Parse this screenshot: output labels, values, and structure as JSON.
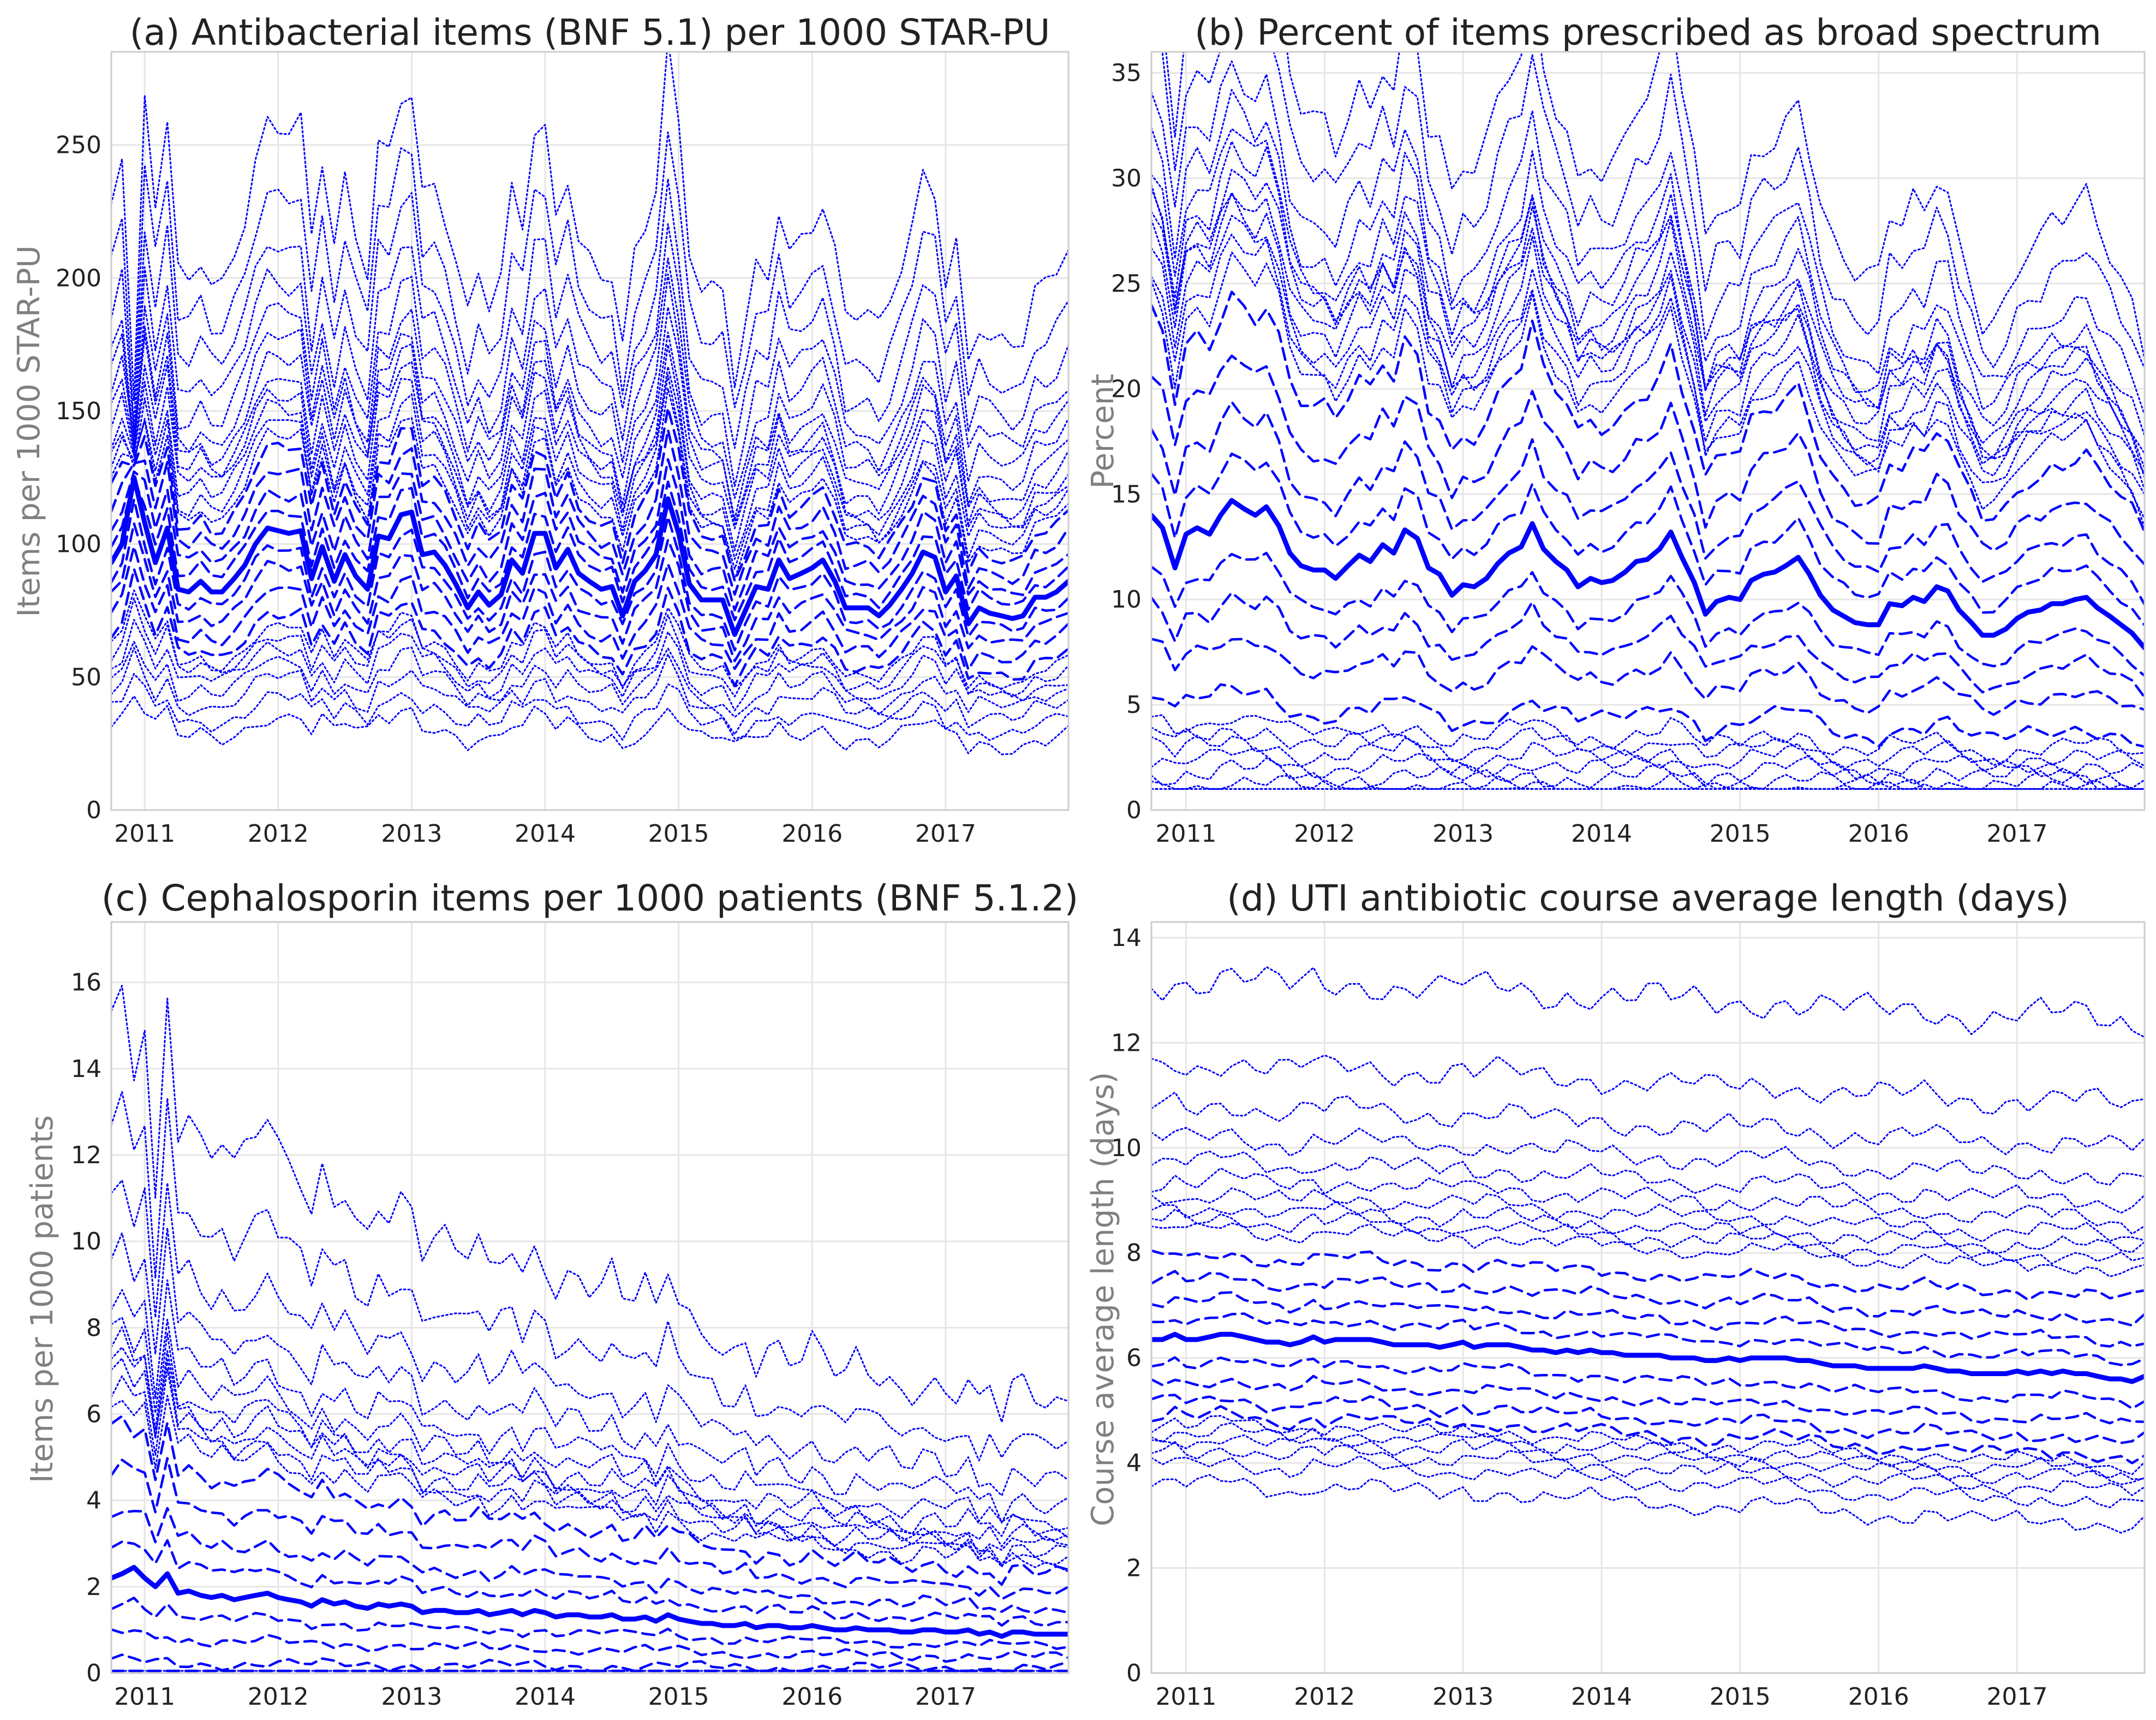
{
  "colors": {
    "series": "#0000ff",
    "grid": "#e6e6e6",
    "frame": "#cccccc"
  },
  "chart_data": [
    {
      "type": "line",
      "title": "(a) Antibacterial items (BNF 5.1) per 1000 STAR-PU",
      "xlabel": "",
      "ylabel": "Items per 1000 STAR-PU",
      "xlim": [
        2010.75,
        2017.92
      ],
      "ylim": [
        0,
        285
      ],
      "xticks": [
        {
          "v": 2011,
          "label": "2011"
        },
        {
          "v": 2012,
          "label": "2012"
        },
        {
          "v": 2013,
          "label": "2013"
        },
        {
          "v": 2014,
          "label": "2014"
        },
        {
          "v": 2015,
          "label": "2015"
        },
        {
          "v": 2016,
          "label": "2016"
        },
        {
          "v": 2017,
          "label": "2017"
        }
      ],
      "yticks": [
        {
          "v": 0,
          "label": "0"
        },
        {
          "v": 50,
          "label": "50"
        },
        {
          "v": 100,
          "label": "100"
        },
        {
          "v": 150,
          "label": "150"
        },
        {
          "v": 200,
          "label": "200"
        },
        {
          "v": 250,
          "label": "250"
        }
      ],
      "grid": true,
      "x": [
        2010.75,
        2010.83,
        2010.92,
        2011.0,
        2011.08,
        2011.17,
        2011.25,
        2011.33,
        2011.42,
        2011.5,
        2011.58,
        2011.67,
        2011.75,
        2011.83,
        2011.92,
        2012.0,
        2012.08,
        2012.17,
        2012.25,
        2012.33,
        2012.42,
        2012.5,
        2012.58,
        2012.67,
        2012.75,
        2012.83,
        2012.92,
        2013.0,
        2013.08,
        2013.17,
        2013.25,
        2013.33,
        2013.42,
        2013.5,
        2013.58,
        2013.67,
        2013.75,
        2013.83,
        2013.92,
        2014.0,
        2014.08,
        2014.17,
        2014.25,
        2014.33,
        2014.42,
        2014.5,
        2014.58,
        2014.67,
        2014.75,
        2014.83,
        2014.92,
        2015.0,
        2015.08,
        2015.17,
        2015.25,
        2015.33,
        2015.42,
        2015.5,
        2015.58,
        2015.67,
        2015.75,
        2015.83,
        2015.92,
        2016.0,
        2016.08,
        2016.17,
        2016.25,
        2016.33,
        2016.42,
        2016.5,
        2016.58,
        2016.67,
        2016.75,
        2016.83,
        2016.92,
        2017.0,
        2017.08,
        2017.17,
        2017.25,
        2017.33,
        2017.42,
        2017.5,
        2017.58,
        2017.67,
        2017.75,
        2017.83,
        2017.92
      ],
      "median": [
        93,
        100,
        125,
        108,
        93,
        106,
        83,
        82,
        86,
        82,
        82,
        87,
        92,
        100,
        106,
        105,
        104,
        105,
        87,
        99,
        86,
        96,
        88,
        83,
        103,
        102,
        111,
        112,
        96,
        97,
        92,
        85,
        76,
        82,
        77,
        81,
        94,
        89,
        104,
        104,
        91,
        98,
        89,
        86,
        83,
        84,
        73,
        86,
        90,
        96,
        117,
        104,
        85,
        79,
        79,
        79,
        66,
        75,
        84,
        83,
        94,
        87,
        89,
        91,
        94,
        86,
        76,
        76,
        76,
        73,
        77,
        83,
        89,
        97,
        95,
        82,
        88,
        70,
        76,
        74,
        73,
        72,
        73,
        80,
        80,
        82,
        86
      ],
      "dashed_offsets": [
        -26,
        -19,
        -12,
        -6,
        6,
        12,
        19,
        26
      ],
      "dotted_offsets": [
        -59,
        -53,
        -47,
        -42,
        -37,
        -33,
        -30,
        30,
        34,
        39,
        44,
        49,
        55,
        61,
        69,
        79,
        92,
        108,
        128
      ],
      "band_scale": "proportional",
      "spike_extra": [
        {
          "x": 2010.92,
          "top": 148
        }
      ],
      "clip_min": 20
    },
    {
      "type": "line",
      "title": "(b) Percent of items prescribed as broad spectrum",
      "xlabel": "",
      "ylabel": "Percent",
      "xlim": [
        2010.75,
        2017.92
      ],
      "ylim": [
        0,
        36
      ],
      "xticks": [
        {
          "v": 2011,
          "label": "2011"
        },
        {
          "v": 2012,
          "label": "2012"
        },
        {
          "v": 2013,
          "label": "2013"
        },
        {
          "v": 2014,
          "label": "2014"
        },
        {
          "v": 2015,
          "label": "2015"
        },
        {
          "v": 2016,
          "label": "2016"
        },
        {
          "v": 2017,
          "label": "2017"
        }
      ],
      "yticks": [
        {
          "v": 0,
          "label": "0"
        },
        {
          "v": 5,
          "label": "5"
        },
        {
          "v": 10,
          "label": "10"
        },
        {
          "v": 15,
          "label": "15"
        },
        {
          "v": 20,
          "label": "20"
        },
        {
          "v": 25,
          "label": "25"
        },
        {
          "v": 30,
          "label": "30"
        },
        {
          "v": 35,
          "label": "35"
        }
      ],
      "grid": true,
      "x": [
        2010.75,
        2010.83,
        2010.92,
        2011.0,
        2011.08,
        2011.17,
        2011.25,
        2011.33,
        2011.42,
        2011.5,
        2011.58,
        2011.67,
        2011.75,
        2011.83,
        2011.92,
        2012.0,
        2012.08,
        2012.17,
        2012.25,
        2012.33,
        2012.42,
        2012.5,
        2012.58,
        2012.67,
        2012.75,
        2012.83,
        2012.92,
        2013.0,
        2013.08,
        2013.17,
        2013.25,
        2013.33,
        2013.42,
        2013.5,
        2013.58,
        2013.67,
        2013.75,
        2013.83,
        2013.92,
        2014.0,
        2014.08,
        2014.17,
        2014.25,
        2014.33,
        2014.42,
        2014.5,
        2014.58,
        2014.67,
        2014.75,
        2014.83,
        2014.92,
        2015.0,
        2015.08,
        2015.17,
        2015.25,
        2015.33,
        2015.42,
        2015.5,
        2015.58,
        2015.67,
        2015.75,
        2015.83,
        2015.92,
        2016.0,
        2016.08,
        2016.17,
        2016.25,
        2016.33,
        2016.42,
        2016.5,
        2016.58,
        2016.67,
        2016.75,
        2016.83,
        2016.92,
        2017.0,
        2017.08,
        2017.17,
        2017.25,
        2017.33,
        2017.42,
        2017.5,
        2017.58,
        2017.67,
        2017.75,
        2017.83,
        2017.92
      ],
      "median": [
        14.0,
        13.4,
        11.5,
        13.1,
        13.4,
        13.1,
        14.0,
        14.7,
        14.3,
        14.0,
        14.4,
        13.5,
        12.2,
        11.6,
        11.4,
        11.4,
        11.0,
        11.6,
        12.1,
        11.8,
        12.6,
        12.2,
        13.3,
        12.9,
        11.5,
        11.2,
        10.2,
        10.7,
        10.6,
        11.0,
        11.7,
        12.2,
        12.5,
        13.6,
        12.4,
        11.8,
        11.4,
        10.6,
        11.0,
        10.8,
        10.9,
        11.3,
        11.8,
        11.9,
        12.4,
        13.2,
        12.0,
        10.8,
        9.3,
        9.9,
        10.1,
        10.0,
        10.9,
        11.2,
        11.3,
        11.6,
        12.0,
        11.2,
        10.2,
        9.5,
        9.2,
        8.9,
        8.8,
        8.8,
        9.8,
        9.7,
        10.1,
        9.9,
        10.6,
        10.4,
        9.5,
        8.9,
        8.3,
        8.3,
        8.6,
        9.1,
        9.4,
        9.5,
        9.8,
        9.8,
        10.0,
        10.1,
        9.6,
        9.2,
        8.8,
        8.4,
        7.7
      ],
      "dashed_offsets": [
        -6.7,
        -4.8,
        -3.3,
        -1.8,
        1.6,
        3.3,
        5.3,
        7.5
      ],
      "dotted_offsets": [
        -11.7,
        -11.1,
        -10.6,
        -10.1,
        -9.6,
        -9.1,
        -8.6,
        -8.1,
        -7.6,
        8.7,
        9.4,
        10.1,
        10.8,
        11.4,
        12.0,
        12.6,
        13.3,
        14.3,
        15.8,
        18.0,
        20.4
      ],
      "band_scale": "proportional",
      "spike_extra": [],
      "clip_min": 1
    },
    {
      "type": "line",
      "title": "(c) Cephalosporin items per 1000 patients (BNF 5.1.2)",
      "xlabel": "",
      "ylabel": "Items per 1000 patients",
      "xlim": [
        2010.75,
        2017.92
      ],
      "ylim": [
        0,
        17.4
      ],
      "xticks": [
        {
          "v": 2011,
          "label": "2011"
        },
        {
          "v": 2012,
          "label": "2012"
        },
        {
          "v": 2013,
          "label": "2013"
        },
        {
          "v": 2014,
          "label": "2014"
        },
        {
          "v": 2015,
          "label": "2015"
        },
        {
          "v": 2016,
          "label": "2016"
        },
        {
          "v": 2017,
          "label": "2017"
        }
      ],
      "yticks": [
        {
          "v": 0,
          "label": "0"
        },
        {
          "v": 2,
          "label": "2"
        },
        {
          "v": 4,
          "label": "4"
        },
        {
          "v": 6,
          "label": "6"
        },
        {
          "v": 8,
          "label": "8"
        },
        {
          "v": 10,
          "label": "10"
        },
        {
          "v": 12,
          "label": "12"
        },
        {
          "v": 14,
          "label": "14"
        },
        {
          "v": 16,
          "label": "16"
        }
      ],
      "grid": true,
      "x": [
        2010.75,
        2010.83,
        2010.92,
        2011.0,
        2011.08,
        2011.17,
        2011.25,
        2011.33,
        2011.42,
        2011.5,
        2011.58,
        2011.67,
        2011.75,
        2011.83,
        2011.92,
        2012.0,
        2012.08,
        2012.17,
        2012.25,
        2012.33,
        2012.42,
        2012.5,
        2012.58,
        2012.67,
        2012.75,
        2012.83,
        2012.92,
        2013.0,
        2013.08,
        2013.17,
        2013.25,
        2013.33,
        2013.42,
        2013.5,
        2013.58,
        2013.67,
        2013.75,
        2013.83,
        2013.92,
        2014.0,
        2014.08,
        2014.17,
        2014.25,
        2014.33,
        2014.42,
        2014.5,
        2014.58,
        2014.67,
        2014.75,
        2014.83,
        2014.92,
        2015.0,
        2015.08,
        2015.17,
        2015.25,
        2015.33,
        2015.42,
        2015.5,
        2015.58,
        2015.67,
        2015.75,
        2015.83,
        2015.92,
        2016.0,
        2016.08,
        2016.17,
        2016.25,
        2016.33,
        2016.42,
        2016.5,
        2016.58,
        2016.67,
        2016.75,
        2016.83,
        2016.92,
        2017.0,
        2017.08,
        2017.17,
        2017.25,
        2017.33,
        2017.42,
        2017.5,
        2017.58,
        2017.67,
        2017.75,
        2017.83,
        2017.92
      ],
      "median": [
        2.2,
        2.3,
        2.45,
        2.2,
        2.0,
        2.3,
        1.85,
        1.9,
        1.8,
        1.75,
        1.8,
        1.7,
        1.75,
        1.8,
        1.85,
        1.75,
        1.7,
        1.65,
        1.55,
        1.7,
        1.6,
        1.65,
        1.55,
        1.5,
        1.6,
        1.55,
        1.6,
        1.55,
        1.4,
        1.45,
        1.45,
        1.4,
        1.4,
        1.45,
        1.35,
        1.4,
        1.45,
        1.35,
        1.45,
        1.4,
        1.3,
        1.35,
        1.35,
        1.3,
        1.3,
        1.35,
        1.25,
        1.25,
        1.3,
        1.2,
        1.35,
        1.25,
        1.2,
        1.15,
        1.15,
        1.1,
        1.1,
        1.15,
        1.05,
        1.1,
        1.1,
        1.05,
        1.05,
        1.1,
        1.05,
        1.0,
        1.0,
        1.05,
        1.0,
        1.0,
        1.0,
        0.95,
        0.95,
        1.0,
        1.0,
        0.95,
        0.95,
        1.0,
        0.9,
        0.95,
        0.85,
        0.95,
        0.95,
        0.9,
        0.9,
        0.9,
        0.9
      ],
      "dashed_offsets": [
        -1.6,
        -1.2,
        -0.8,
        -0.4,
        0.45,
        0.9,
        1.5,
        2.1
      ],
      "dotted_offsets": [
        -2.0,
        -1.95,
        -1.9,
        -1.85,
        2.5,
        2.7,
        2.9,
        3.1,
        3.3,
        3.6,
        4.0,
        4.6,
        5.4,
        6.5,
        8.0
      ],
      "band_scale": "proportional",
      "spike_extra": [
        {
          "x": 2010.92,
          "top": 14.0
        },
        {
          "x": 2011.08,
          "top": 11.0
        }
      ],
      "clip_min": 0.05
    },
    {
      "type": "line",
      "title": "(d) UTI antibiotic course average length (days)",
      "xlabel": "",
      "ylabel": "Course average length (days)",
      "xlim": [
        2010.75,
        2017.92
      ],
      "ylim": [
        0,
        14.3
      ],
      "xticks": [
        {
          "v": 2011,
          "label": "2011"
        },
        {
          "v": 2012,
          "label": "2012"
        },
        {
          "v": 2013,
          "label": "2013"
        },
        {
          "v": 2014,
          "label": "2014"
        },
        {
          "v": 2015,
          "label": "2015"
        },
        {
          "v": 2016,
          "label": "2016"
        },
        {
          "v": 2017,
          "label": "2017"
        }
      ],
      "yticks": [
        {
          "v": 0,
          "label": "0"
        },
        {
          "v": 2,
          "label": "2"
        },
        {
          "v": 4,
          "label": "4"
        },
        {
          "v": 6,
          "label": "6"
        },
        {
          "v": 8,
          "label": "8"
        },
        {
          "v": 10,
          "label": "10"
        },
        {
          "v": 12,
          "label": "12"
        },
        {
          "v": 14,
          "label": "14"
        }
      ],
      "grid": true,
      "x": [
        2010.75,
        2010.83,
        2010.92,
        2011.0,
        2011.08,
        2011.17,
        2011.25,
        2011.33,
        2011.42,
        2011.5,
        2011.58,
        2011.67,
        2011.75,
        2011.83,
        2011.92,
        2012.0,
        2012.08,
        2012.17,
        2012.25,
        2012.33,
        2012.42,
        2012.5,
        2012.58,
        2012.67,
        2012.75,
        2012.83,
        2012.92,
        2013.0,
        2013.08,
        2013.17,
        2013.25,
        2013.33,
        2013.42,
        2013.5,
        2013.58,
        2013.67,
        2013.75,
        2013.83,
        2013.92,
        2014.0,
        2014.08,
        2014.17,
        2014.25,
        2014.33,
        2014.42,
        2014.5,
        2014.58,
        2014.67,
        2014.75,
        2014.83,
        2014.92,
        2015.0,
        2015.08,
        2015.17,
        2015.25,
        2015.33,
        2015.42,
        2015.5,
        2015.58,
        2015.67,
        2015.75,
        2015.83,
        2015.92,
        2016.0,
        2016.08,
        2016.17,
        2016.25,
        2016.33,
        2016.42,
        2016.5,
        2016.58,
        2016.67,
        2016.75,
        2016.83,
        2016.92,
        2017.0,
        2017.08,
        2017.17,
        2017.25,
        2017.33,
        2017.42,
        2017.5,
        2017.58,
        2017.67,
        2017.75,
        2017.83,
        2017.92
      ],
      "median": [
        6.35,
        6.35,
        6.45,
        6.35,
        6.35,
        6.4,
        6.45,
        6.45,
        6.4,
        6.35,
        6.3,
        6.3,
        6.25,
        6.3,
        6.4,
        6.3,
        6.35,
        6.35,
        6.35,
        6.35,
        6.3,
        6.25,
        6.25,
        6.25,
        6.25,
        6.2,
        6.25,
        6.3,
        6.2,
        6.25,
        6.25,
        6.25,
        6.2,
        6.15,
        6.15,
        6.1,
        6.15,
        6.1,
        6.15,
        6.1,
        6.1,
        6.05,
        6.05,
        6.05,
        6.05,
        6.0,
        6.0,
        6.0,
        5.95,
        5.95,
        6.0,
        5.95,
        6.0,
        6.0,
        6.0,
        6.0,
        5.95,
        5.95,
        5.9,
        5.85,
        5.85,
        5.85,
        5.8,
        5.8,
        5.8,
        5.8,
        5.8,
        5.85,
        5.8,
        5.75,
        5.75,
        5.7,
        5.7,
        5.7,
        5.7,
        5.75,
        5.7,
        5.75,
        5.7,
        5.75,
        5.7,
        5.7,
        5.65,
        5.6,
        5.6,
        5.55,
        5.65
      ],
      "dashed_offsets": [
        -1.5,
        -1.2,
        -0.85,
        -0.45,
        0.35,
        0.7,
        1.1,
        1.55
      ],
      "dotted_offsets": [
        -2.8,
        -2.4,
        -2.15,
        -1.95,
        -1.8,
        -1.65,
        2.05,
        2.25,
        2.45,
        2.7,
        3.0,
        3.35,
        3.8,
        4.4,
        5.2,
        6.8
      ],
      "band_scale": "absolute",
      "spike_extra": [],
      "clip_min": 2
    }
  ]
}
